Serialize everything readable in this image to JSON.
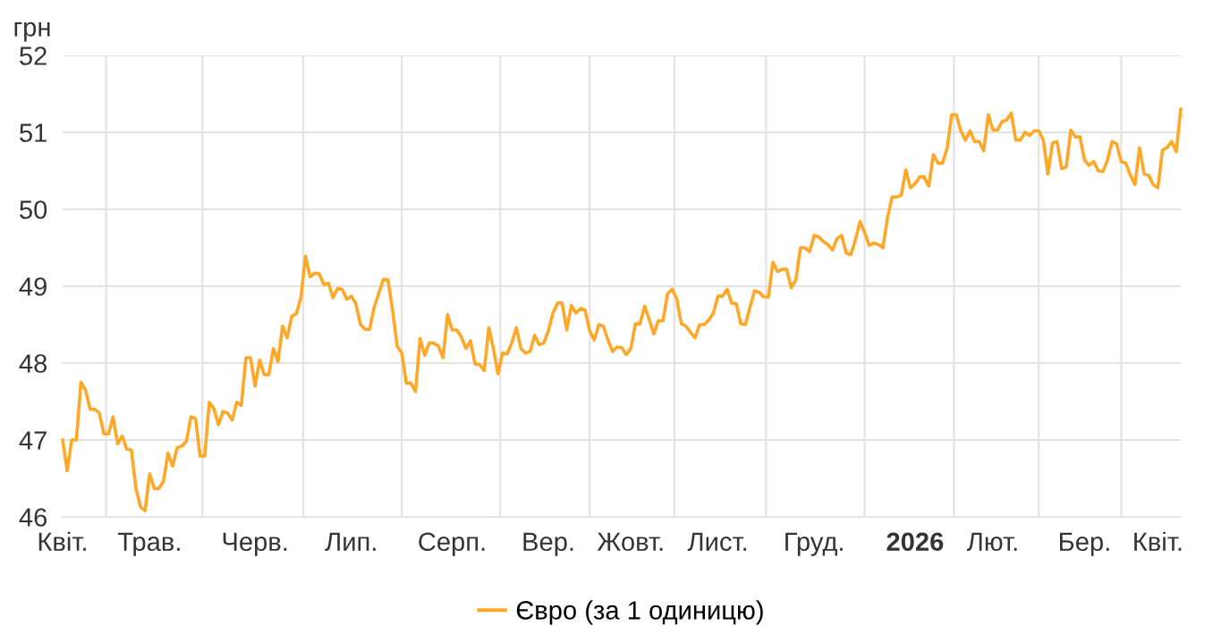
{
  "chart_data": {
    "type": "line",
    "ylabel": "грн",
    "categories": [
      "Квіт.",
      null,
      null,
      null,
      null,
      null,
      null,
      null,
      null,
      null,
      null,
      null,
      null,
      null,
      null,
      null,
      null,
      null,
      null,
      "Трав.",
      null,
      null,
      null,
      null,
      null,
      null,
      null,
      null,
      null,
      null,
      null,
      null,
      null,
      null,
      null,
      null,
      null,
      null,
      null,
      null,
      null,
      null,
      "Черв.",
      null,
      null,
      null,
      null,
      null,
      null,
      null,
      null,
      null,
      null,
      null,
      null,
      null,
      null,
      null,
      null,
      null,
      null,
      null,
      null,
      "Лип.",
      null,
      null,
      null,
      null,
      null,
      null,
      null,
      null,
      null,
      null,
      null,
      null,
      null,
      null,
      null,
      null,
      null,
      null,
      null,
      null,
      null,
      "Серп.",
      null,
      null,
      null,
      null,
      null,
      null,
      null,
      null,
      null,
      null,
      null,
      null,
      null,
      null,
      null,
      null,
      null,
      null,
      null,
      null,
      "Вер.",
      null,
      null,
      null,
      null,
      null,
      null,
      null,
      null,
      null,
      null,
      null,
      null,
      null,
      null,
      null,
      null,
      null,
      "Жовт.",
      null,
      null,
      null,
      null,
      null,
      null,
      null,
      null,
      null,
      null,
      null,
      null,
      null,
      null,
      null,
      null,
      null,
      null,
      "Лист.",
      null,
      null,
      null,
      null,
      null,
      null,
      null,
      null,
      null,
      null,
      null,
      null,
      null,
      null,
      null,
      null,
      null,
      null,
      null,
      null,
      "Груд.",
      null,
      null,
      null,
      null,
      null,
      null,
      null,
      null,
      null,
      null,
      null,
      null,
      null,
      null,
      null,
      null,
      null,
      null,
      null,
      null,
      null,
      "2026",
      null,
      null,
      null,
      null,
      null,
      null,
      null,
      null,
      null,
      null,
      null,
      null,
      null,
      null,
      null,
      null,
      "Лют.",
      null,
      null,
      null,
      null,
      null,
      null,
      null,
      null,
      null,
      null,
      null,
      null,
      null,
      null,
      null,
      null,
      null,
      null,
      null,
      "Бер.",
      null,
      null,
      null,
      null,
      null,
      null,
      null,
      null,
      null,
      null,
      null,
      null,
      null,
      null,
      null,
      "Квіт.",
      null,
      null,
      null,
      null,
      null
    ],
    "series": [
      {
        "name": "Євро (за 1 одиницю)",
        "color": "#ffa726",
        "values": [
          47.0,
          46.6,
          47.0,
          47.0,
          47.75,
          47.65,
          47.4,
          47.4,
          47.35,
          47.08,
          47.08,
          47.3,
          46.95,
          47.05,
          46.88,
          46.87,
          46.37,
          46.13,
          46.08,
          46.56,
          46.37,
          46.37,
          46.46,
          46.83,
          46.66,
          46.9,
          46.92,
          46.98,
          47.3,
          47.28,
          46.79,
          46.79,
          47.49,
          47.41,
          47.2,
          47.37,
          47.35,
          47.26,
          47.49,
          47.45,
          48.07,
          48.07,
          47.7,
          48.04,
          47.85,
          47.85,
          48.19,
          48.02,
          48.48,
          48.33,
          48.61,
          48.64,
          48.85,
          49.39,
          49.12,
          49.17,
          49.16,
          49.02,
          49.04,
          48.85,
          48.97,
          48.96,
          48.83,
          48.87,
          48.77,
          48.5,
          48.44,
          48.44,
          48.73,
          48.91,
          49.09,
          49.08,
          48.69,
          48.22,
          48.13,
          47.74,
          47.74,
          47.63,
          48.32,
          48.1,
          48.26,
          48.26,
          48.22,
          48.07,
          48.63,
          48.43,
          48.43,
          48.34,
          48.19,
          48.29,
          47.99,
          47.98,
          47.9,
          48.46,
          48.19,
          47.86,
          48.13,
          48.12,
          48.26,
          48.46,
          48.19,
          48.13,
          48.15,
          48.36,
          48.24,
          48.26,
          48.42,
          48.65,
          48.78,
          48.78,
          48.43,
          48.75,
          48.65,
          48.71,
          48.69,
          48.42,
          48.3,
          48.5,
          48.48,
          48.3,
          48.15,
          48.21,
          48.2,
          48.11,
          48.19,
          48.51,
          48.51,
          48.74,
          48.57,
          48.38,
          48.55,
          48.55,
          48.9,
          48.96,
          48.84,
          48.51,
          48.48,
          48.4,
          48.33,
          48.5,
          48.5,
          48.56,
          48.65,
          48.87,
          48.87,
          48.96,
          48.78,
          48.77,
          48.51,
          48.5,
          48.73,
          48.94,
          48.92,
          48.86,
          48.86,
          49.31,
          49.19,
          49.22,
          49.22,
          48.98,
          49.08,
          49.5,
          49.5,
          49.45,
          49.66,
          49.64,
          49.58,
          49.54,
          49.47,
          49.62,
          49.66,
          49.43,
          49.41,
          49.6,
          49.84,
          49.7,
          49.53,
          49.56,
          49.54,
          49.5,
          49.89,
          50.16,
          50.16,
          50.18,
          50.51,
          50.28,
          50.33,
          50.42,
          50.42,
          50.3,
          50.71,
          50.6,
          50.6,
          50.79,
          51.23,
          51.23,
          51.02,
          50.9,
          51.02,
          50.88,
          50.88,
          50.76,
          51.23,
          51.03,
          51.03,
          51.14,
          51.16,
          51.25,
          50.9,
          50.9,
          51.0,
          50.96,
          51.02,
          51.02,
          50.9,
          50.46,
          50.86,
          50.88,
          50.53,
          50.55,
          51.03,
          50.94,
          50.94,
          50.64,
          50.57,
          50.62,
          50.5,
          50.49,
          50.64,
          50.88,
          50.85,
          50.62,
          50.6,
          50.44,
          50.32,
          50.8,
          50.46,
          50.44,
          50.32,
          50.28,
          50.77,
          50.8,
          50.88,
          50.75,
          51.3
        ]
      }
    ],
    "ylim": [
      46,
      52
    ],
    "yticks": [
      46,
      47,
      48,
      49,
      50,
      51,
      52
    ],
    "grid": true,
    "legend": "bottom",
    "marker": "none",
    "line_style": "solid"
  }
}
